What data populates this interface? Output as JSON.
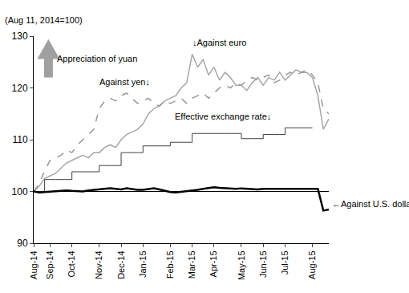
{
  "chart_data": {
    "type": "line",
    "ylabel": "(Aug 11, 2014=100)",
    "annotations": [
      "Appreciation of yuan"
    ],
    "categories": [
      "Aug-14",
      null,
      null,
      "Sep-14",
      null,
      null,
      null,
      "Oct-14",
      null,
      null,
      null,
      null,
      "Nov-14",
      null,
      null,
      null,
      "Dec-14",
      null,
      null,
      null,
      "Jan-15",
      null,
      null,
      null,
      null,
      "Feb-15",
      null,
      null,
      null,
      "Mar-15",
      null,
      null,
      null,
      "Apr-15",
      null,
      null,
      null,
      null,
      "May-15",
      null,
      null,
      null,
      "Jun-15",
      null,
      null,
      null,
      "Jul-15",
      null,
      null,
      null,
      null,
      "Aug-15",
      null,
      null,
      null
    ],
    "series": [
      {
        "name": "↓Against euro",
        "color": "#a6a6a6",
        "line_style": "solid",
        "values": [
          100,
          101,
          102.5,
          103,
          103.5,
          104.5,
          105.5,
          106,
          106.5,
          107,
          106.5,
          107.5,
          107.5,
          108.5,
          109,
          108.5,
          110,
          111,
          111.5,
          112,
          113,
          115,
          116,
          116.5,
          117.5,
          118,
          118.5,
          120,
          121,
          126.5,
          124,
          125.5,
          122.5,
          124,
          121.5,
          123,
          122,
          120.5,
          120.5,
          119.5,
          121,
          122,
          120.5,
          122,
          121.5,
          123,
          121.5,
          122.5,
          123.5,
          123,
          123,
          122,
          118.5,
          112,
          114
        ]
      },
      {
        "name": "Against yen↓",
        "color": "#999999",
        "line_style": "dash",
        "values": [
          100,
          101.5,
          104,
          106,
          106.5,
          107,
          108,
          107.5,
          109,
          110,
          111,
          112,
          116,
          117.5,
          118,
          117.5,
          118.5,
          119,
          118,
          117,
          117.5,
          118,
          117,
          116.5,
          117.5,
          117,
          117.5,
          118,
          117,
          118,
          118.5,
          119,
          118,
          119,
          120,
          120.5,
          120,
          121,
          120.5,
          121.5,
          122,
          121.5,
          122,
          122.5,
          121,
          121.5,
          122.5,
          123,
          122.5,
          123,
          123.5,
          122.5,
          121,
          116,
          115
        ]
      },
      {
        "name": "Effective exchange rate↓",
        "color": "#404040",
        "line_style": "step",
        "values": [
          100,
          100,
          102.3,
          102.3,
          102.3,
          102.3,
          102.3,
          103.8,
          103.8,
          103.8,
          103.8,
          103.8,
          105,
          105,
          105,
          105,
          107.5,
          107.5,
          107.5,
          107.5,
          108.8,
          108.8,
          108.8,
          108.8,
          108.8,
          109.5,
          109.5,
          109.5,
          109.5,
          111.2,
          111.2,
          111.2,
          111.2,
          111.2,
          111.2,
          111.2,
          111.2,
          111.2,
          110.2,
          110.2,
          110.2,
          110.2,
          111,
          111,
          111,
          111,
          112.3,
          112.3,
          112.3,
          112.3,
          112.3,
          112.3,
          null,
          null,
          null
        ]
      },
      {
        "name": "←Against U.S. dollar",
        "color": "#000000",
        "line_style": "solid",
        "values": [
          100,
          99.8,
          99.9,
          100,
          100,
          100.1,
          100.2,
          100.1,
          100.1,
          100,
          100.2,
          100.3,
          100.4,
          100.5,
          100.6,
          100.5,
          100.4,
          100.6,
          100.4,
          100.3,
          100.3,
          100.5,
          100.6,
          100.4,
          100.1,
          99.9,
          99.8,
          99.9,
          100,
          100.2,
          100.3,
          100.5,
          100.6,
          100.8,
          100.7,
          100.6,
          100.5,
          100.5,
          100.6,
          100.5,
          100.5,
          100.4,
          100.5,
          100.5,
          100.5,
          100.5,
          100.5,
          100.5,
          100.5,
          100.5,
          100.5,
          100.5,
          100.5,
          96.3,
          96.5
        ]
      }
    ],
    "hline": 100,
    "ylim": [
      90,
      130
    ],
    "yticks": [
      90,
      100,
      110,
      120,
      130
    ],
    "grid": false
  }
}
